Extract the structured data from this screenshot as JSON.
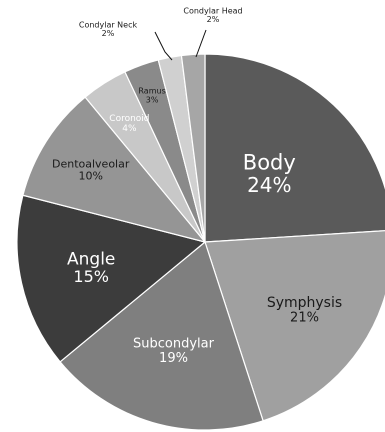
{
  "chart_data": {
    "type": "pie",
    "title": "",
    "categories": [
      "Body",
      "Symphysis",
      "Subcondylar",
      "Angle",
      "Dentoalveolar",
      "Coronoid",
      "Ramus",
      "Condylar Neck",
      "Condylar Head"
    ],
    "values": [
      24,
      21,
      19,
      15,
      10,
      4,
      3,
      2,
      2
    ],
    "value_labels": [
      "24%",
      "21%",
      "19%",
      "15%",
      "10%",
      "4%",
      "3%",
      "2%",
      "2%"
    ],
    "colors": [
      "#5a5a5a",
      "#a0a0a0",
      "#7f7f7f",
      "#3c3c3c",
      "#959595",
      "#c8c8c8",
      "#8a8a8a",
      "#d0d0d0",
      "#a6a6a6"
    ],
    "label_colors": [
      "#ffffff",
      "#1a1a1a",
      "#ffffff",
      "#ffffff",
      "#1a1a1a",
      "#ffffff",
      "#1a1a1a",
      "#1a1a1a",
      "#1a1a1a"
    ],
    "legend": "none",
    "start_angle": "12 o'clock",
    "direction": "clockwise"
  }
}
